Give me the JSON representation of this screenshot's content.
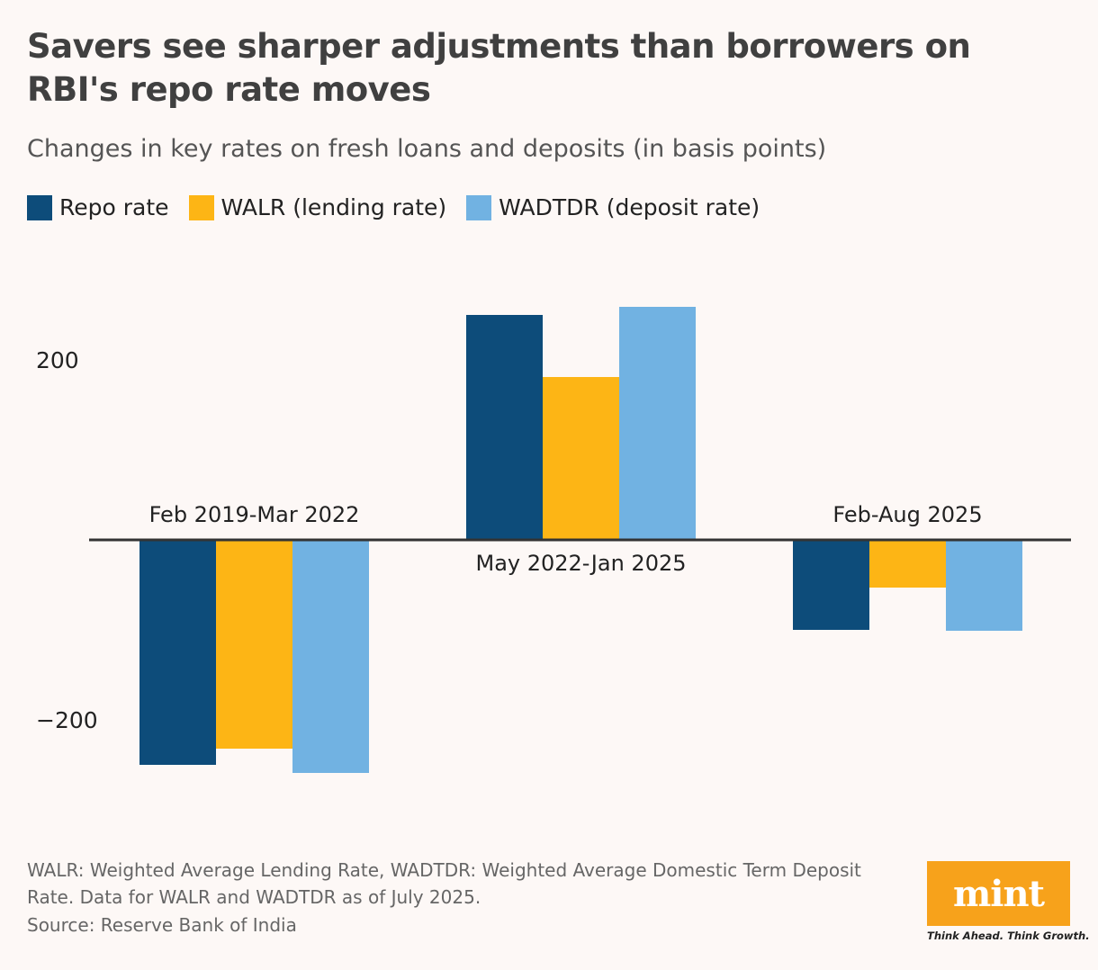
{
  "title": "Savers see sharper adjustments than borrowers on RBI's repo rate moves",
  "subtitle": "Changes in key rates on fresh loans and deposits (in basis points)",
  "legend": [
    {
      "label": "Repo rate",
      "color": "#0d4c7a"
    },
    {
      "label": "WALR (lending rate)",
      "color": "#fdb515"
    },
    {
      "label": "WADTDR (deposit rate)",
      "color": "#71b2e2"
    }
  ],
  "footnote": "WALR: Weighted Average Lending Rate, WADTDR: Weighted Average Domestic Term Deposit Rate. Data for WALR and WADTDR as of July 2025.",
  "source": "Source: Reserve Bank of India",
  "logo": {
    "text": "mint",
    "tagline": "Think Ahead. Think Growth."
  },
  "chart_data": {
    "type": "bar",
    "categories": [
      "Feb 2019-Mar 2022",
      "May 2022-Jan 2025",
      "Feb-Aug 2025"
    ],
    "series": [
      {
        "name": "Repo rate",
        "color": "#0d4c7a",
        "values": [
          -250,
          250,
          -100
        ]
      },
      {
        "name": "WALR (lending rate)",
        "color": "#fdb515",
        "values": [
          -232,
          181,
          -53
        ]
      },
      {
        "name": "WADTDR (deposit rate)",
        "color": "#71b2e2",
        "values": [
          -259,
          259,
          -101
        ]
      }
    ],
    "yticks": [
      {
        "value": 200,
        "label": "200"
      },
      {
        "value": -200,
        "label": "−200"
      }
    ],
    "ylim": [
      -300,
      300
    ],
    "grid": false,
    "legend_position": "top-left"
  }
}
